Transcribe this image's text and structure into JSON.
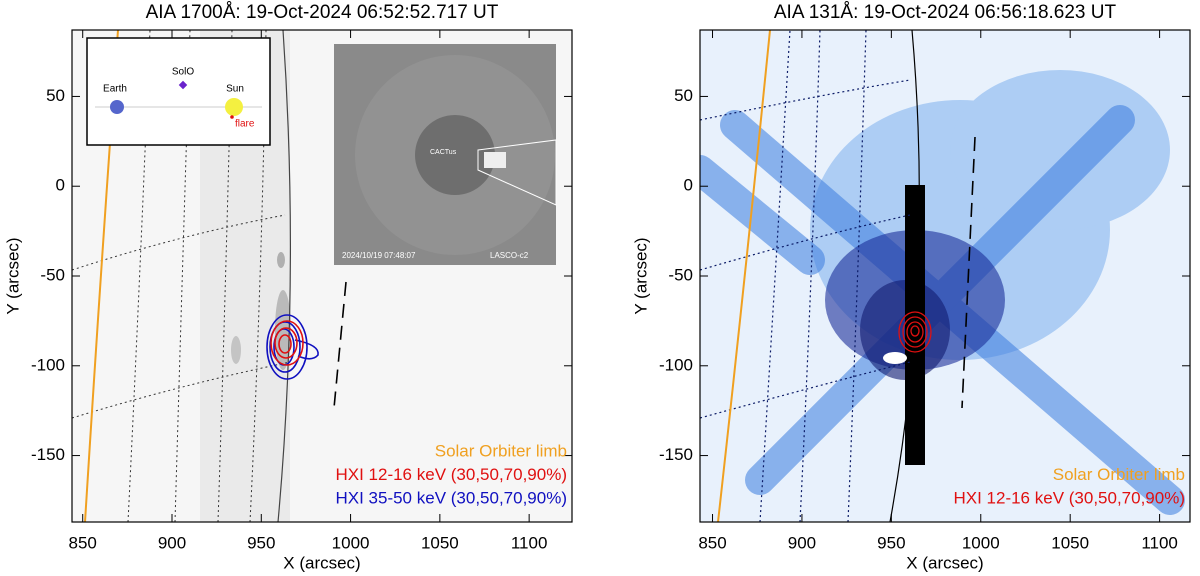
{
  "chart_data": [
    {
      "type": "image",
      "title": "AIA 1700Å:  19-Oct-2024 06:52:52.717 UT",
      "xlabel": "X (arcsec)",
      "ylabel": "Y (arcsec)",
      "xlim": [
        844,
        1124
      ],
      "ylim": [
        -187,
        87
      ],
      "xticks": [
        850,
        900,
        950,
        1000,
        1050,
        1100
      ],
      "yticks": [
        -150,
        -100,
        -50,
        0,
        50
      ],
      "legend": [
        {
          "text": "Solar Orbiter limb",
          "color": "#f0a020"
        },
        {
          "text": "HXI 12-16 keV (30,50,70,90%)",
          "color": "#e01010"
        },
        {
          "text": "HXI 35-50 keV (30,50,70,90%)",
          "color": "#1010c0"
        }
      ],
      "orbit_labels": [
        "Earth",
        "SolO",
        "Sun",
        "flare"
      ],
      "lasco_labels": [
        "CACTus",
        "2024/10/19  07:48:07",
        "LASCO-c2"
      ]
    },
    {
      "type": "image",
      "title": "AIA 131Å:  19-Oct-2024 06:56:18.623 UT",
      "xlabel": "X (arcsec)",
      "ylabel": "Y (arcsec)",
      "xlim": [
        843,
        1117
      ],
      "ylim": [
        -187,
        87
      ],
      "xticks": [
        850,
        900,
        950,
        1000,
        1050,
        1100
      ],
      "yticks": [
        -150,
        -100,
        -50,
        0,
        50
      ],
      "legend": [
        {
          "text": "Solar Orbiter limb",
          "color": "#f0a020"
        },
        {
          "text": "HXI 12-16 keV (30,50,70,90%)",
          "color": "#e01010"
        }
      ]
    }
  ]
}
